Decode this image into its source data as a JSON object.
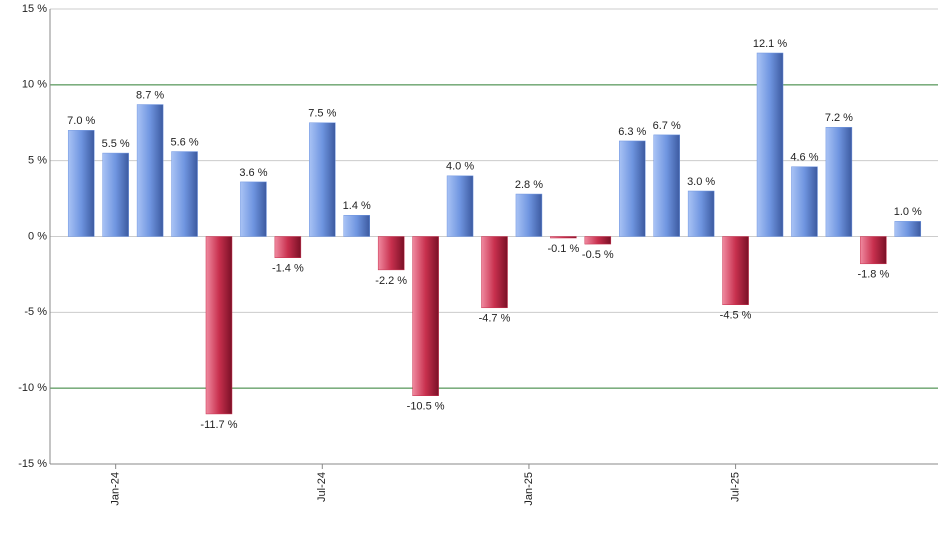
{
  "chart_data": {
    "type": "bar",
    "categories": [
      null,
      "Jan-24",
      null,
      null,
      null,
      null,
      null,
      "Jul-24",
      null,
      null,
      null,
      null,
      null,
      "Jan-25",
      null,
      null,
      null,
      null,
      null,
      "Jul-25",
      null,
      null,
      null,
      null,
      null
    ],
    "values": [
      7.0,
      5.5,
      8.7,
      5.6,
      -11.7,
      3.6,
      -1.4,
      7.5,
      1.4,
      -2.2,
      -10.5,
      4.0,
      -4.7,
      2.8,
      -0.1,
      -0.5,
      6.3,
      6.7,
      3.0,
      -4.5,
      12.1,
      4.6,
      7.2,
      -1.8,
      1.0
    ],
    "value_labels": [
      "7.0 %",
      "5.5 %",
      "8.7 %",
      "5.6 %",
      "-11.7 %",
      "3.6 %",
      "-1.4 %",
      "7.5 %",
      "1.4 %",
      "-2.2 %",
      "-10.5 %",
      "4.0 %",
      "-4.7 %",
      "2.8 %",
      "-0.1 %",
      "-0.5 %",
      "6.3 %",
      "6.7 %",
      "3.0 %",
      "-4.5 %",
      "12.1 %",
      "4.6 %",
      "7.2 %",
      "-1.8 %",
      "1.0 %"
    ],
    "positive_color": "#6f95e0",
    "negative_color": "#c8304e",
    "ylim": [
      -15,
      15
    ],
    "yticks": [
      {
        "value": -15,
        "label": "-15 %"
      },
      {
        "value": -10,
        "label": "-10 %"
      },
      {
        "value": -5,
        "label": "-5 %"
      },
      {
        "value": 0,
        "label": "0 %"
      },
      {
        "value": 5,
        "label": "5 %"
      },
      {
        "value": 10,
        "label": "10 %"
      },
      {
        "value": 15,
        "label": "15 %"
      }
    ],
    "grid": true,
    "highlight_ticks": [
      -10,
      10
    ],
    "highlight_color": "#2e7d32"
  }
}
